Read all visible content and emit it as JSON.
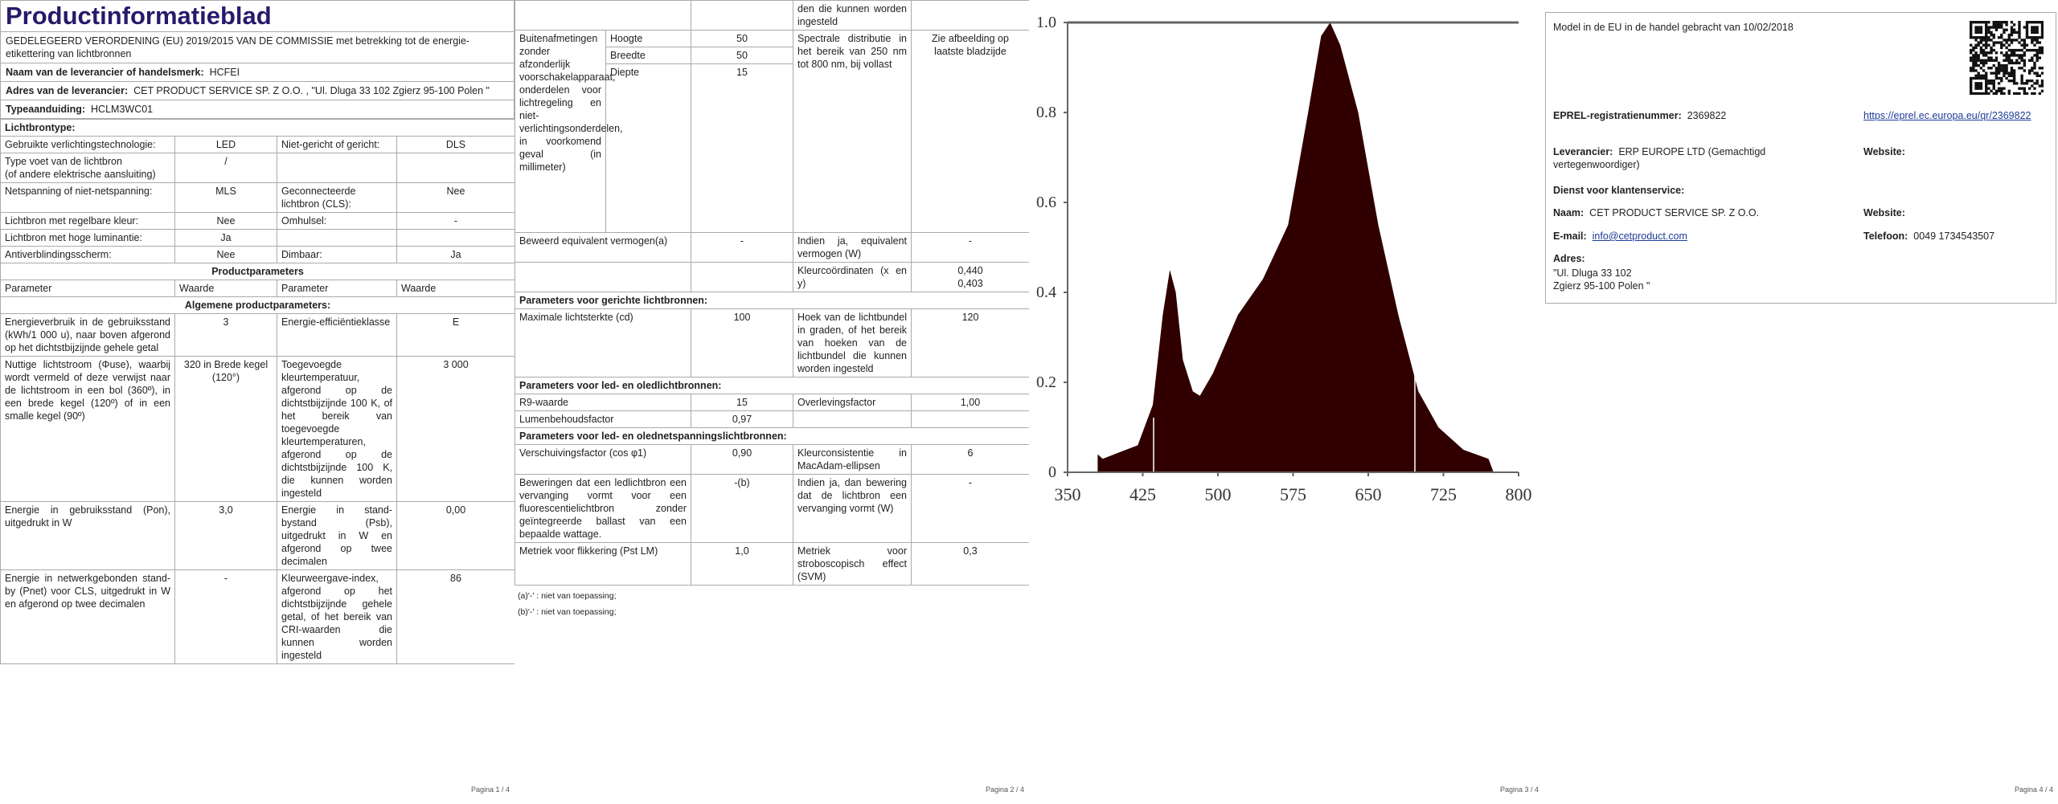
{
  "page1": {
    "title": "Productinformatieblad",
    "subtitle": "GEDELEGEERD VERORDENING (EU) 2019/2015 VAN DE COMMISSIE met betrekking tot de energie-etikettering van lichtbronnen",
    "supplier": {
      "label": "Naam van de leverancier of handelsmerk:",
      "value": "HCFEI"
    },
    "address": {
      "label": "Adres van de leverancier:",
      "value": "CET PRODUCT SERVICE SP. Z O.O. , \"Ul. Dluga 33 102 Zgierz 95-100 Polen \""
    },
    "model": {
      "label": "Typeaanduiding:",
      "value": "HCLM3WC01"
    },
    "light_source": {
      "heading": "Lichtbrontype:",
      "rows": [
        [
          "Gebruikte verlichtingstechnologie:",
          "LED",
          "Niet-gericht of gericht:",
          "DLS"
        ],
        [
          "Type voet van de lichtbron\n(of andere elektrische aansluiting)",
          "/"
        ],
        [
          "Netspanning of niet-netspanning:",
          "MLS",
          "Geconnecteerde lichtbron (CLS):",
          "Nee"
        ],
        [
          "Lichtbron met regelbare kleur:",
          "Nee",
          "Omhulsel:",
          "-"
        ],
        [
          "Lichtbron met hoge luminantie:",
          "Ja"
        ],
        [
          "Antiverblindingsscherm:",
          "Nee",
          "Dimbaar:",
          "Ja"
        ]
      ]
    },
    "product": {
      "heading": "Productparameters",
      "columns": [
        "Parameter",
        "Waarde",
        "Parameter",
        "Waarde"
      ],
      "general_heading": "Algemene productparameters:",
      "rows": [
        [
          "Energieverbruik in de gebruiksstand (kWh/1 000 u), naar boven afgerond op het dichtstbijzijnde gehele getal",
          "3",
          "Energie-efficiëntieklasse",
          "E"
        ],
        [
          "Nuttige lichtstroom (Φuse), waarbij wordt vermeld of deze verwijst naar de lichtstroom in een bol (360º), in een brede kegel (120º) of in een smalle kegel (90º)",
          "320 in Brede kegel (120°)",
          "Toegevoegde kleurtemperatuur, afgerond op de dichtstbijzijnde 100 K, of het bereik van toegevoegde kleurtemperaturen, afgerond op de dichtstbijzijnde 100 K, die kunnen worden ingesteld",
          "3 000"
        ],
        [
          "Energie in gebruiksstand (Pon), uitgedrukt in W",
          "3,0",
          "Energie in stand-bystand (Psb), uitgedrukt in W en afgerond op twee decimalen",
          "0,00"
        ],
        [
          "Energie in netwerkgebonden stand-by (Pnet) voor CLS, uitgedrukt in W en afgerond op twee decimalen",
          "-",
          "Kleurweergave-index, afgerond op het dichtstbijzijnde gehele getal, of het bereik van CRI-waarden die kunnen worden ingesteld",
          "86"
        ]
      ]
    },
    "footer": "Pagina 1 / 4"
  },
  "page2": {
    "continued": "den die kunnen worden ingesteld",
    "dimensions": {
      "label": "Buitenafmetingen zonder afzonderlijk voorschakelapparaat, onderdelen voor lichtregeling en niet-verlichtingsonderdelen, in voorkomend geval (in millimeter)",
      "rows": [
        [
          "Hoogte",
          "50"
        ],
        [
          "Breedte",
          "50"
        ],
        [
          "Diepte",
          "15"
        ]
      ]
    },
    "spectral": {
      "label": "Spectrale distributie in het bereik van 250 nm tot 800 nm, bij vollast",
      "value": "Zie afbeelding op laatste bladzijde"
    },
    "equivalent": {
      "label": "Beweerd equivalent vermogen(a)",
      "value": "-",
      "label2": "Indien ja, equivalent vermogen (W)",
      "value2": "-"
    },
    "chromaticity": {
      "label": "Kleurcoördinaten (x en y)",
      "value": "0,440\n0,403"
    },
    "sections": [
      {
        "heading": "Parameters voor gerichte lichtbronnen:",
        "rows": [
          [
            "Maximale lichtsterkte (cd)",
            "100",
            "Hoek van de lichtbundel in graden, of het bereik van hoeken van de lichtbundel die kunnen worden ingesteld",
            "120"
          ]
        ]
      },
      {
        "heading": "Parameters voor led- en oledlichtbronnen:",
        "rows": [
          [
            "R9-waarde",
            "15",
            "Overlevingsfactor",
            "1,00"
          ],
          [
            "Lumenbehoudsfactor",
            "0,97"
          ]
        ]
      },
      {
        "heading": "Parameters voor led- en olednetspanningslichtbronnen:",
        "rows": [
          [
            "Verschuivingsfactor (cos φ1)",
            "0,90",
            "Kleurconsistentie in MacAdam-ellipsen",
            "6"
          ],
          [
            "Beweringen dat een ledlichtbron een vervanging vormt voor een fluorescentielichtbron zonder geïntegreerde ballast van een bepaalde wattage.",
            "-(b)",
            "Indien ja, dan bewering dat de lichtbron een vervanging vormt (W)",
            "-"
          ],
          [
            "Metriek voor flikkering (Pst LM)",
            "1,0",
            "Metriek voor stroboscopisch effect (SVM)",
            "0,3"
          ]
        ]
      }
    ],
    "notes": [
      "(a)'-' : niet van toepassing;",
      "(b)'-' : niet van toepassing;"
    ],
    "footer": "Pagina 2 / 4"
  },
  "page3": {
    "spectrum": {
      "xlim": [
        350,
        800
      ],
      "ylim": [
        0,
        1
      ],
      "xticks": [
        350,
        425,
        500,
        575,
        650,
        725,
        800
      ],
      "yticks": [
        0,
        0.2,
        0.4,
        0.6,
        0.8,
        {
          "value": 1,
          "label": "1.0"
        }
      ]
    },
    "footer": "Pagina 3 / 4"
  },
  "page4": {
    "placed": "Model in de EU in de handel gebracht van 10/02/2018",
    "eprel": {
      "label": "EPREL-registratienummer:",
      "value": "2369822",
      "link": "https://eprel.ec.europa.eu/qr/2369822"
    },
    "supplier": {
      "label": "Leverancier:",
      "value": "ERP EUROPE LTD (Gemachtigd vertegenwoordiger)",
      "website": "Website:"
    },
    "service": "Dienst voor klantenservice:",
    "name": {
      "label": "Naam:",
      "value": "CET PRODUCT SERVICE SP. Z O.O.",
      "website": "Website:"
    },
    "email": {
      "label": "E-mail:",
      "value": "info@cetproduct.com",
      "phone_label": "Telefoon:",
      "phone": "0049 1734543507"
    },
    "address": {
      "label": "Adres:",
      "value": "\"Ul. Dluga 33 102\nZgierz 95-100 Polen \""
    },
    "footer": "Pagina 4 / 4"
  }
}
